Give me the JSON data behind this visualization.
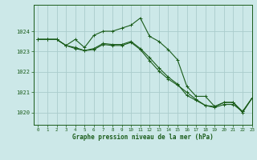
{
  "title": "Graphe pression niveau de la mer (hPa)",
  "background_color": "#cce8e8",
  "grid_color": "#aacccc",
  "line_color": "#1a5c1a",
  "xlim": [
    -0.5,
    23
  ],
  "ylim": [
    1019.4,
    1025.3
  ],
  "yticks": [
    1020,
    1021,
    1022,
    1023,
    1024
  ],
  "xticks": [
    0,
    1,
    2,
    3,
    4,
    5,
    6,
    7,
    8,
    9,
    10,
    11,
    12,
    13,
    14,
    15,
    16,
    17,
    18,
    19,
    20,
    21,
    22,
    23
  ],
  "series": [
    [
      1023.6,
      1023.6,
      1023.6,
      1023.3,
      1023.6,
      1023.2,
      1023.8,
      1024.0,
      1024.0,
      1024.15,
      1024.3,
      1024.65,
      1023.75,
      1023.5,
      1023.1,
      1022.6,
      1021.3,
      1020.8,
      1020.8,
      1020.3,
      1020.5,
      1020.5,
      1020.0,
      1020.7
    ],
    [
      1023.6,
      1023.6,
      1023.6,
      1023.3,
      1023.2,
      1023.05,
      1023.15,
      1023.4,
      1023.35,
      1023.35,
      1023.5,
      1023.15,
      1022.7,
      1022.2,
      1021.75,
      1021.4,
      1020.85,
      1020.6,
      1020.35,
      1020.3,
      1020.5,
      1020.5,
      1020.05,
      1020.7
    ],
    [
      1023.6,
      1023.6,
      1023.6,
      1023.3,
      1023.15,
      1023.05,
      1023.1,
      1023.35,
      1023.3,
      1023.3,
      1023.45,
      1023.1,
      1022.55,
      1022.05,
      1021.65,
      1021.35,
      1021.0,
      1020.65,
      1020.35,
      1020.25,
      1020.4,
      1020.4,
      1020.05,
      1020.7
    ]
  ]
}
